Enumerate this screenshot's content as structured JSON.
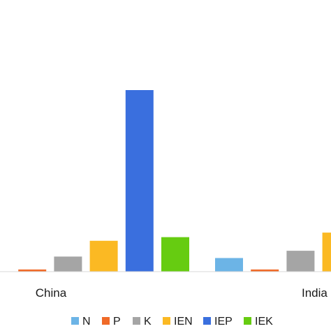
{
  "chart_data": {
    "type": "bar",
    "categories": [
      "China",
      "India"
    ],
    "series": [
      {
        "name": "N",
        "color": "#6CB4E6",
        "values": [
          0.2,
          7.5
        ]
      },
      {
        "name": "P",
        "color": "#F06A28",
        "values": [
          1.2,
          1.2
        ]
      },
      {
        "name": "K",
        "color": "#A5A5A5",
        "values": [
          8.3,
          11.5
        ]
      },
      {
        "name": "IEN",
        "color": "#FBB923",
        "values": [
          17.0,
          21.5
        ]
      },
      {
        "name": "IEP",
        "color": "#3A6FDE",
        "values": [
          100,
          null
        ]
      },
      {
        "name": "IEK",
        "color": "#66CC11",
        "values": [
          19.0,
          null
        ]
      }
    ],
    "ylim": [
      0,
      115
    ],
    "grid": false,
    "legend_position": "bottom"
  }
}
